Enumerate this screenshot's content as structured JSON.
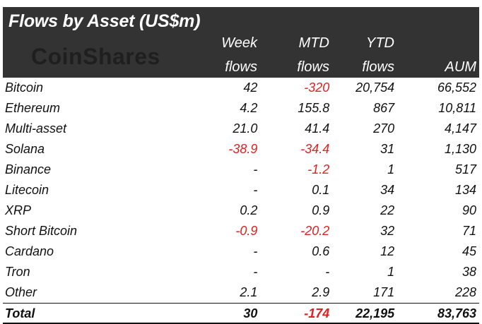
{
  "title": "Flows by Asset (US$m)",
  "logo_text": "CoinShares",
  "columns": {
    "week": [
      "Week",
      "flows"
    ],
    "mtd": [
      "MTD",
      "flows"
    ],
    "ytd": [
      "YTD",
      "flows"
    ],
    "aum": [
      "",
      "AUM"
    ]
  },
  "rows": [
    {
      "asset": "Bitcoin",
      "week": "42",
      "mtd": "-320",
      "ytd": "20,754",
      "aum": "66,552",
      "neg": [
        "mtd"
      ]
    },
    {
      "asset": "Ethereum",
      "week": "4.2",
      "mtd": "155.8",
      "ytd": "867",
      "aum": "10,811",
      "neg": []
    },
    {
      "asset": "Multi-asset",
      "week": "21.0",
      "mtd": "41.4",
      "ytd": "270",
      "aum": "4,147",
      "neg": []
    },
    {
      "asset": "Solana",
      "week": "-38.9",
      "mtd": "-34.4",
      "ytd": "31",
      "aum": "1,130",
      "neg": [
        "week",
        "mtd"
      ]
    },
    {
      "asset": "Binance",
      "week": "-",
      "mtd": "-1.2",
      "ytd": "1",
      "aum": "517",
      "neg": [
        "mtd"
      ]
    },
    {
      "asset": "Litecoin",
      "week": "-",
      "mtd": "0.1",
      "ytd": "34",
      "aum": "134",
      "neg": []
    },
    {
      "asset": "XRP",
      "week": "0.2",
      "mtd": "0.9",
      "ytd": "22",
      "aum": "90",
      "neg": []
    },
    {
      "asset": "Short Bitcoin",
      "week": "-0.9",
      "mtd": "-20.2",
      "ytd": "32",
      "aum": "71",
      "neg": [
        "week",
        "mtd"
      ]
    },
    {
      "asset": "Cardano",
      "week": "-",
      "mtd": "0.6",
      "ytd": "12",
      "aum": "45",
      "neg": []
    },
    {
      "asset": "Tron",
      "week": "-",
      "mtd": "-",
      "ytd": "1",
      "aum": "38",
      "neg": []
    },
    {
      "asset": "Other",
      "week": "2.1",
      "mtd": "2.9",
      "ytd": "171",
      "aum": "228",
      "neg": []
    }
  ],
  "total": {
    "asset": "Total",
    "week": "30",
    "mtd": "-174",
    "ytd": "22,195",
    "aum": "83,763",
    "neg": [
      "mtd"
    ]
  },
  "colors": {
    "header_bg": "#333333",
    "negative": "#e12020",
    "text": "#111111"
  }
}
